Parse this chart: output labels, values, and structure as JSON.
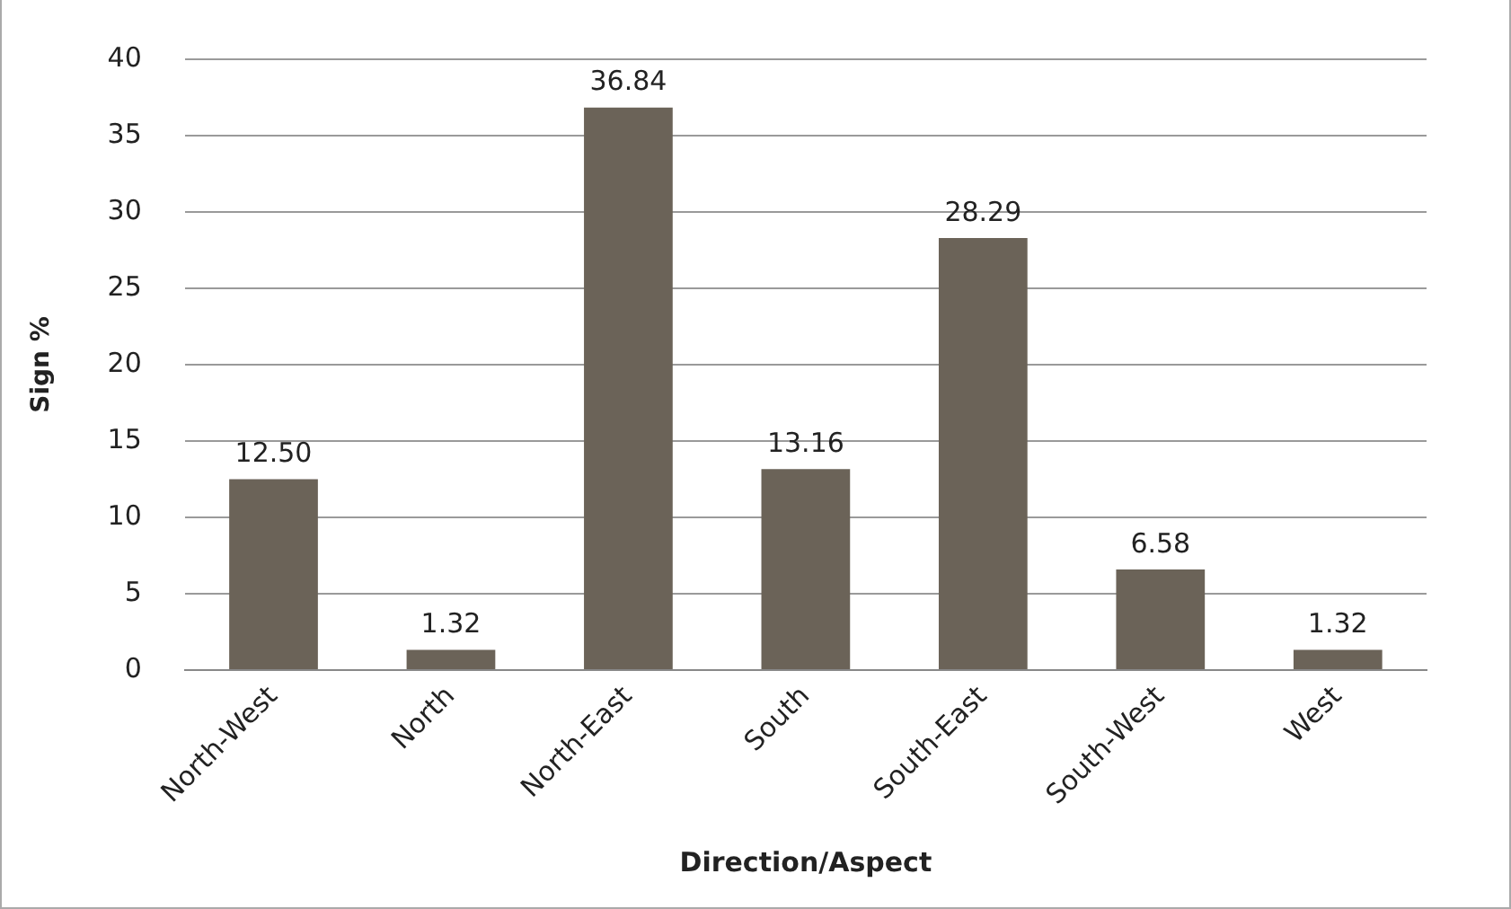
{
  "chart_data": {
    "type": "bar",
    "xlabel": "Direction/Aspect",
    "ylabel": "Sign %",
    "categories": [
      "North-West",
      "North",
      "North-East",
      "South",
      "South-East",
      "South-West",
      "West"
    ],
    "values": [
      12.5,
      1.32,
      36.84,
      13.16,
      28.29,
      6.58,
      1.32
    ],
    "value_labels": [
      "12.50",
      "1.32",
      "36.84",
      "13.16",
      "28.29",
      "6.58",
      "1.32"
    ],
    "color": "#6b6358",
    "ylim": [
      0,
      40
    ],
    "yticks": [
      0,
      5,
      10,
      15,
      20,
      25,
      30,
      35,
      40
    ],
    "grid": "y",
    "legend": false
  }
}
